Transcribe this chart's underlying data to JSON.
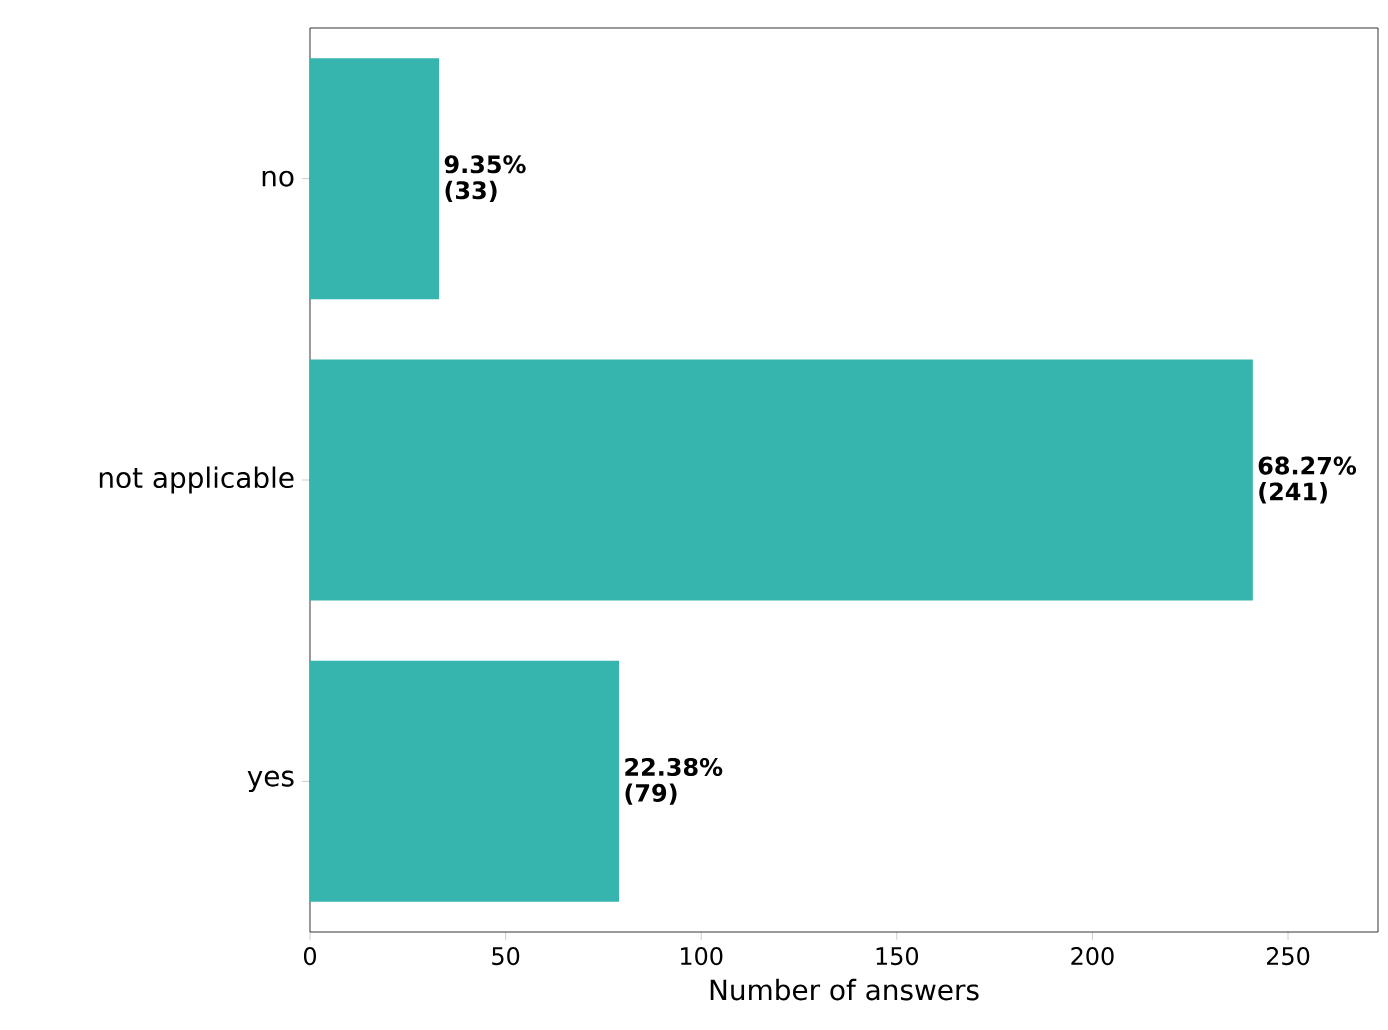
{
  "chart_data": {
    "type": "bar",
    "orientation": "horizontal",
    "xlabel": "Number of answers",
    "categories": [
      "no",
      "not applicable",
      "yes"
    ],
    "values": [
      33,
      241,
      79
    ],
    "value_labels": [
      "9.35% (33)",
      "68.27% (241)",
      "22.38% (79)"
    ],
    "color": "#35b5ae",
    "xlim": [
      0,
      273
    ],
    "xticks": [
      0,
      50,
      100,
      150,
      200,
      250
    ],
    "grid": false
  }
}
